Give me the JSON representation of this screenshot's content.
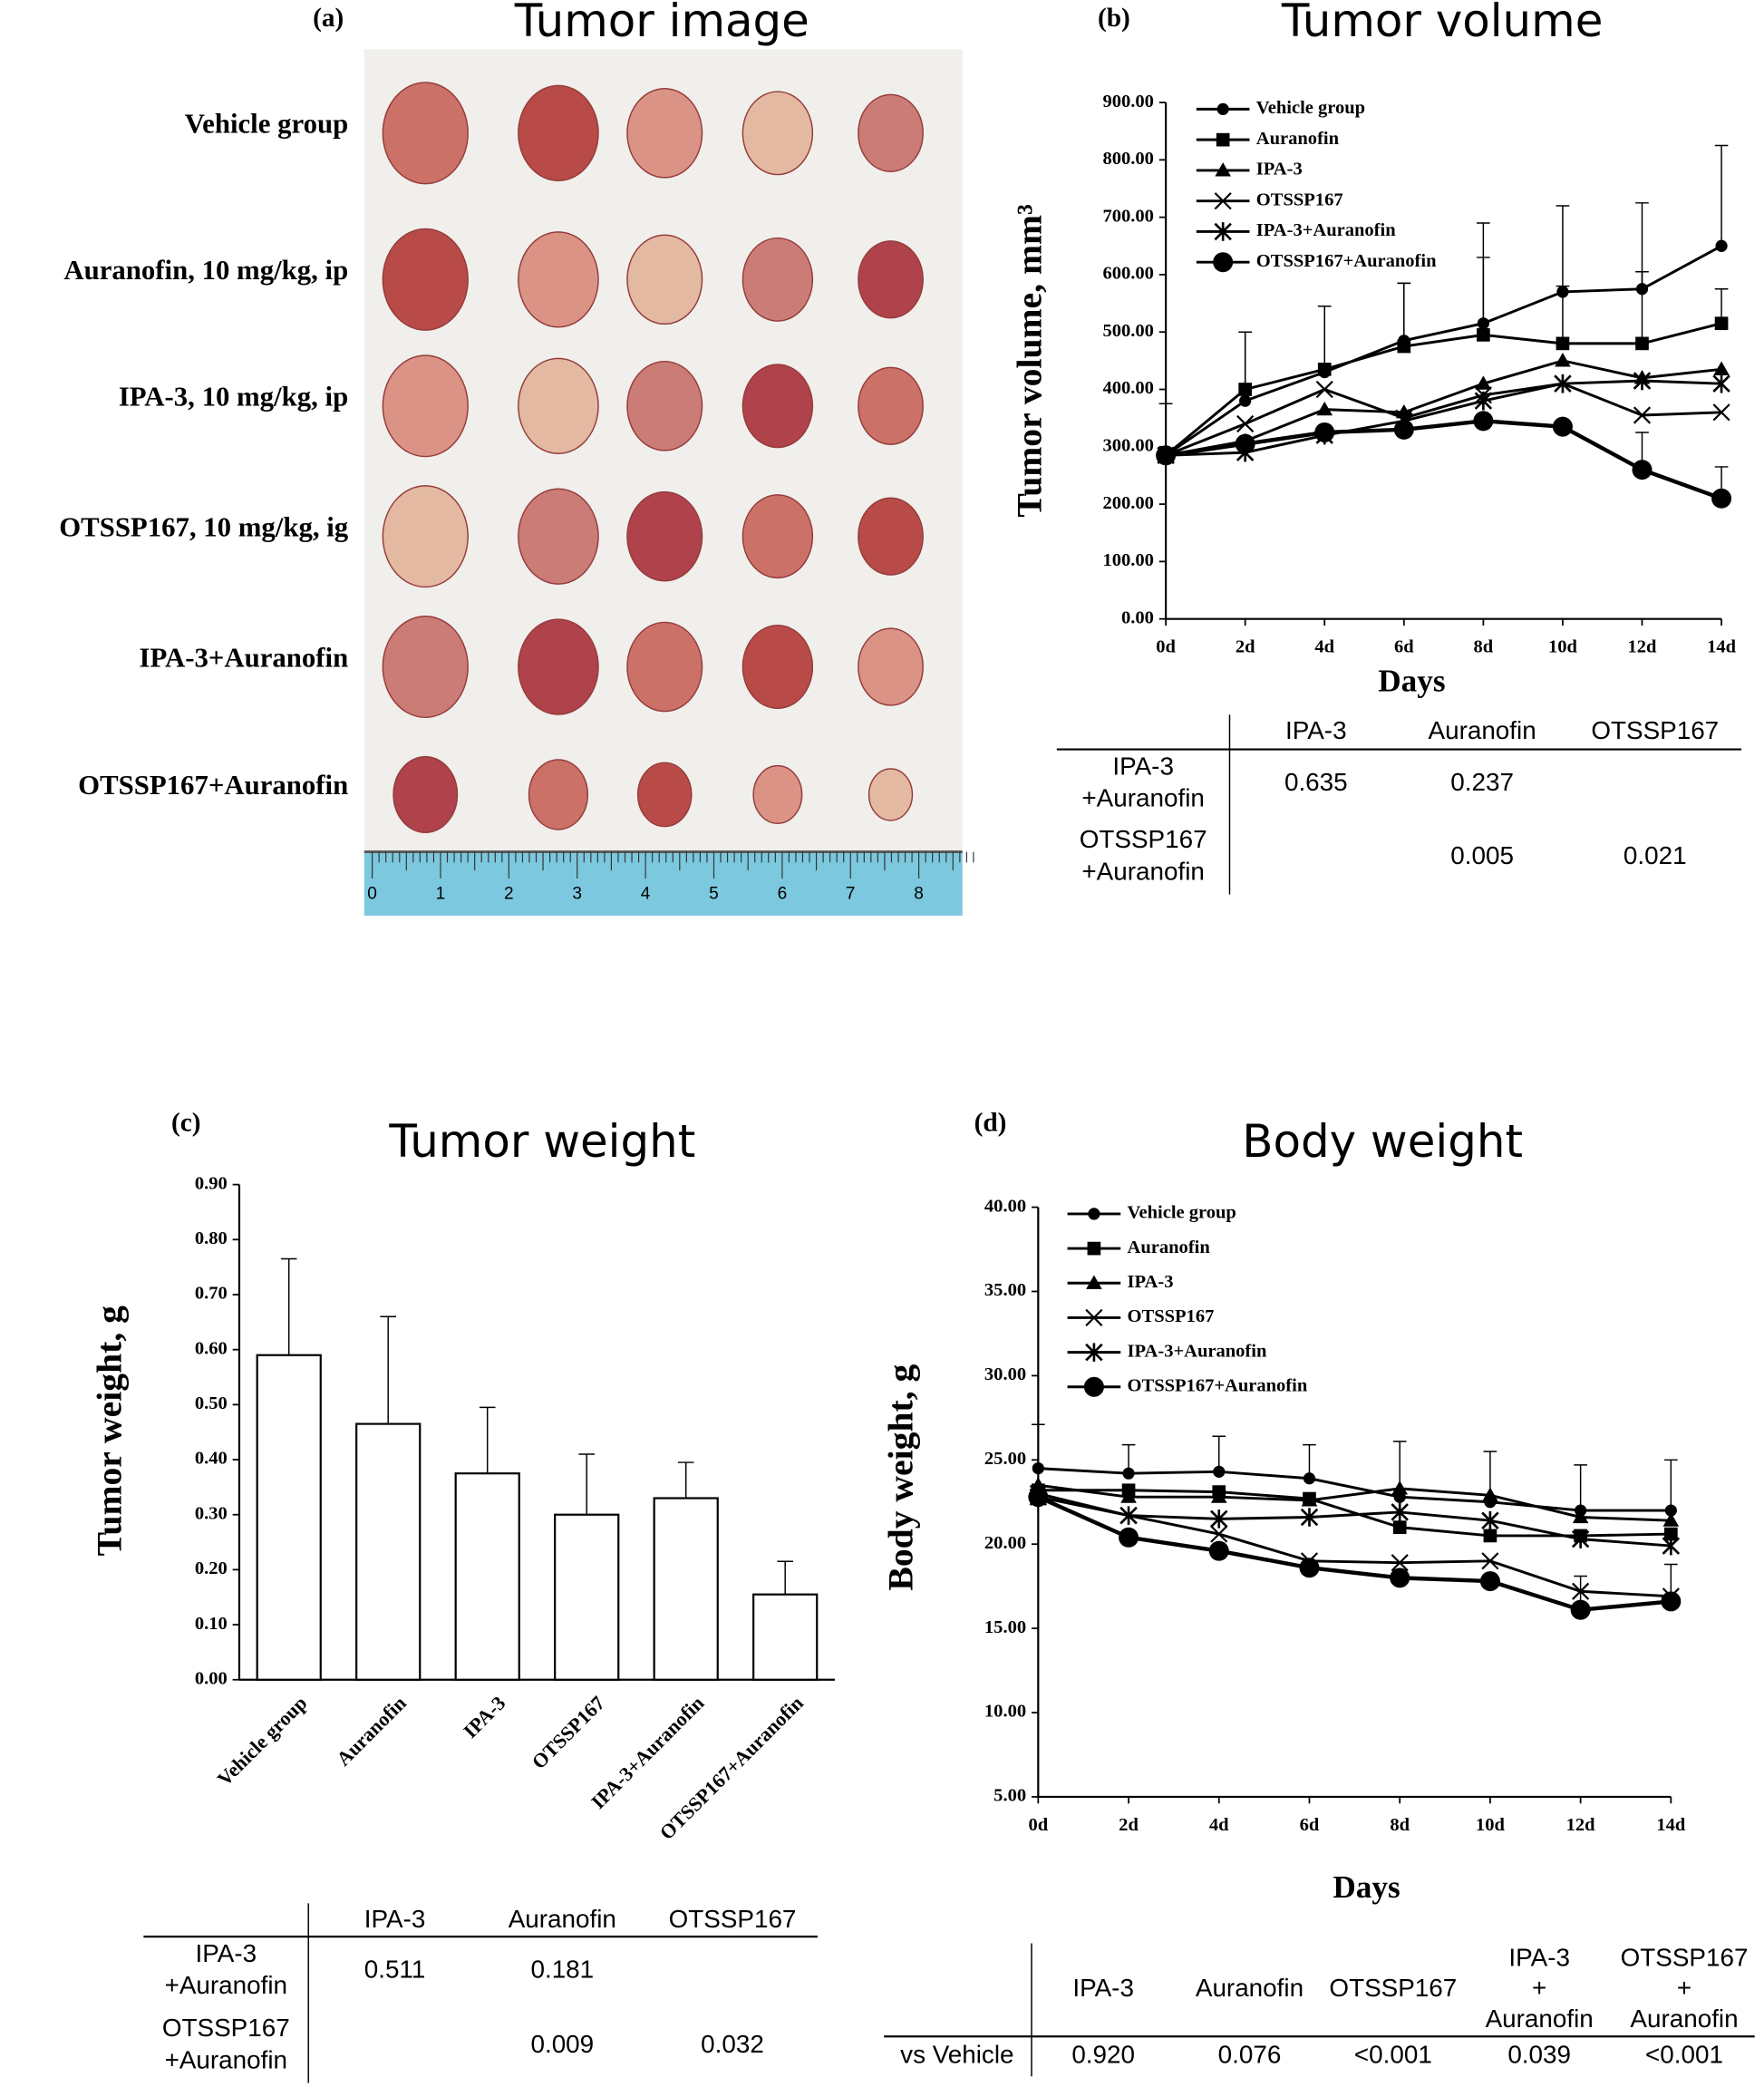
{
  "image_panel": {
    "letter": "(a)",
    "title": "Tumor image",
    "rows": [
      "Vehicle group",
      "Auranofin, 10 mg/kg, ip",
      "IPA-3, 10 mg/kg, ip",
      "OTSSP167, 10 mg/kg, ig",
      "IPA-3+Auranofin",
      "OTSSP167+Auranofin"
    ],
    "ruler_labels": [
      0,
      1,
      2,
      3,
      4,
      5,
      6,
      7,
      8
    ]
  },
  "chart_data": [
    {
      "type": "line",
      "letter": "(b)",
      "title": "Tumor volume",
      "x_label": "Days",
      "y_label": "Tumor volume, mm³",
      "categories": [
        "0d",
        "2d",
        "4d",
        "6d",
        "8d",
        "10d",
        "12d",
        "14d"
      ],
      "ylim": [
        0,
        900
      ],
      "yticks": [
        {
          "value": 0,
          "label": "0.00"
        },
        {
          "value": 100,
          "label": "100.00"
        },
        {
          "value": 200,
          "label": "200.00"
        },
        {
          "value": 300,
          "label": "300.00"
        },
        {
          "value": 400,
          "label": "400.00"
        },
        {
          "value": 500,
          "label": "500.00"
        },
        {
          "value": 600,
          "label": "600.00"
        },
        {
          "value": 700,
          "label": "700.00"
        },
        {
          "value": 800,
          "label": "800.00"
        },
        {
          "value": 900,
          "label": "900.00"
        }
      ],
      "series": [
        {
          "name": "Vehicle group",
          "color": "#000000",
          "marker": "circle",
          "values": [
            285,
            380,
            430,
            485,
            515,
            570,
            575,
            650
          ],
          "errors": [
            90,
            120,
            115,
            100,
            175,
            150,
            150,
            175
          ]
        },
        {
          "name": "Auranofin",
          "color": "#000000",
          "marker": "square",
          "values": [
            285,
            400,
            435,
            475,
            495,
            480,
            480,
            515
          ],
          "errors": [
            90,
            100,
            110,
            110,
            135,
            100,
            125,
            60
          ]
        },
        {
          "name": "IPA-3",
          "color": "#000000",
          "marker": "triangle",
          "values": [
            285,
            310,
            365,
            360,
            410,
            450,
            420,
            435
          ]
        },
        {
          "name": "OTSSP167",
          "color": "#000000",
          "marker": "x",
          "values": [
            285,
            340,
            400,
            350,
            390,
            410,
            355,
            360
          ]
        },
        {
          "name": "IPA-3+Auranofin",
          "color": "#000000",
          "marker": "star",
          "values": [
            285,
            290,
            320,
            345,
            380,
            410,
            415,
            410
          ]
        },
        {
          "name": "OTSSP167+Auranofin",
          "color": "#000000",
          "marker": "circle-large",
          "values": [
            285,
            305,
            325,
            330,
            345,
            335,
            260,
            210
          ],
          "errors": [
            0,
            0,
            0,
            0,
            0,
            0,
            65,
            55
          ]
        }
      ],
      "table": {
        "header": [
          [
            "IPA-3"
          ],
          [
            "Auranofin"
          ],
          [
            "OTSSP167"
          ]
        ],
        "rows": [
          {
            "label": [
              "IPA-3",
              "+Auranofin"
            ],
            "values": [
              "0.635",
              "0.237",
              null
            ]
          },
          {
            "label": [
              "OTSSP167",
              "+Auranofin"
            ],
            "values": [
              null,
              "0.005",
              "0.021"
            ]
          }
        ]
      }
    },
    {
      "type": "bar",
      "letter": "(c)",
      "title": "Tumor weight",
      "y_label": "Tumor weight, g",
      "categories": [
        "Vehicle group",
        "Auranofin",
        "IPA-3",
        "OTSSP167",
        "IPA-3+Auranofin",
        "OTSSP167+Auranofin"
      ],
      "values": [
        0.59,
        0.465,
        0.375,
        0.3,
        0.33,
        0.155
      ],
      "errors": [
        0.175,
        0.195,
        0.12,
        0.11,
        0.065,
        0.06
      ],
      "color": "#ffffff",
      "ylim": [
        0,
        0.9
      ],
      "yticks": [
        {
          "value": 0,
          "label": "0.00"
        },
        {
          "value": 0.1,
          "label": "0.10"
        },
        {
          "value": 0.2,
          "label": "0.20"
        },
        {
          "value": 0.3,
          "label": "0.30"
        },
        {
          "value": 0.4,
          "label": "0.40"
        },
        {
          "value": 0.5,
          "label": "0.50"
        },
        {
          "value": 0.6,
          "label": "0.60"
        },
        {
          "value": 0.7,
          "label": "0.70"
        },
        {
          "value": 0.8,
          "label": "0.80"
        },
        {
          "value": 0.9,
          "label": "0.90"
        }
      ],
      "table": {
        "header": [
          [
            "IPA-3"
          ],
          [
            "Auranofin"
          ],
          [
            "OTSSP167"
          ]
        ],
        "rows": [
          {
            "label": [
              "IPA-3",
              "+Auranofin"
            ],
            "values": [
              "0.511",
              "0.181",
              null
            ]
          },
          {
            "label": [
              "OTSSP167",
              "+Auranofin"
            ],
            "values": [
              null,
              "0.009",
              "0.032"
            ]
          }
        ]
      }
    },
    {
      "type": "line",
      "letter": "(d)",
      "title": "Body weight",
      "x_label": "Days",
      "y_label": "Body weight, g",
      "categories": [
        "0d",
        "2d",
        "4d",
        "6d",
        "8d",
        "10d",
        "12d",
        "14d"
      ],
      "ylim": [
        5,
        40
      ],
      "yticks": [
        {
          "value": 5,
          "label": "5.00"
        },
        {
          "value": 10,
          "label": "10.00"
        },
        {
          "value": 15,
          "label": "15.00"
        },
        {
          "value": 20,
          "label": "20.00"
        },
        {
          "value": 25,
          "label": "25.00"
        },
        {
          "value": 30,
          "label": "30.00"
        },
        {
          "value": 35,
          "label": "35.00"
        },
        {
          "value": 40,
          "label": "40.00"
        }
      ],
      "series": [
        {
          "name": "Vehicle group",
          "color": "#000000",
          "marker": "circle",
          "values": [
            24.5,
            24.2,
            24.3,
            23.9,
            22.8,
            22.5,
            22,
            22
          ],
          "errors": [
            2.6,
            1.7,
            2.1,
            2,
            3.3,
            3,
            2.7,
            3
          ]
        },
        {
          "name": "Auranofin",
          "color": "#000000",
          "marker": "square",
          "values": [
            23.2,
            23.2,
            23.1,
            22.7,
            21,
            20.5,
            20.5,
            20.6
          ]
        },
        {
          "name": "IPA-3",
          "color": "#000000",
          "marker": "triangle",
          "values": [
            23.5,
            22.8,
            22.8,
            22.6,
            23.3,
            22.9,
            21.6,
            21.4
          ]
        },
        {
          "name": "OTSSP167",
          "color": "#000000",
          "marker": "x",
          "values": [
            23,
            21.7,
            20.6,
            19,
            18.9,
            19,
            17.2,
            16.9
          ]
        },
        {
          "name": "IPA-3+Auranofin",
          "color": "#000000",
          "marker": "star",
          "values": [
            22.8,
            21.7,
            21.5,
            21.6,
            21.9,
            21.4,
            20.3,
            19.9
          ]
        },
        {
          "name": "OTSSP167+Auranofin",
          "color": "#000000",
          "marker": "circle-large",
          "values": [
            22.8,
            20.4,
            19.6,
            18.6,
            18,
            17.8,
            16.1,
            16.6
          ],
          "errors": [
            0,
            0,
            0,
            0,
            0,
            0,
            2,
            2.2
          ]
        }
      ],
      "table": {
        "header": [
          [
            "IPA-3"
          ],
          [
            "Auranofin"
          ],
          [
            "OTSSP167"
          ],
          [
            "IPA-3",
            "+",
            "Auranofin"
          ],
          [
            "OTSSP167",
            "+",
            "Auranofin"
          ]
        ],
        "rows": [
          {
            "label": [
              "vs Vehicle"
            ],
            "values": [
              "0.920",
              "0.076",
              "<0.001",
              "0.039",
              "<0.001"
            ]
          }
        ]
      }
    }
  ]
}
